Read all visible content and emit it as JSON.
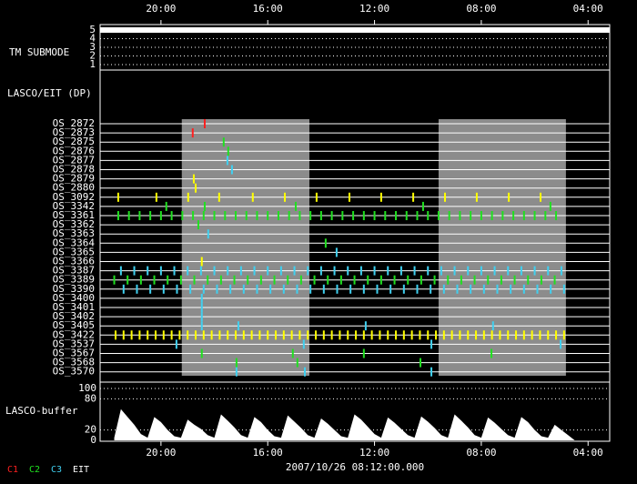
{
  "time_axis": {
    "xlim": [
      22.28,
      3.19
    ],
    "ticks": [
      {
        "value": 20,
        "label": "20:00"
      },
      {
        "value": 16,
        "label": "16:00"
      },
      {
        "value": 12,
        "label": "12:00"
      },
      {
        "value": 8,
        "label": "08:00"
      },
      {
        "value": 4,
        "label": "04:00"
      }
    ]
  },
  "shaded": [
    [
      19.22,
      14.44
    ],
    [
      9.6,
      4.83
    ]
  ],
  "submode": {
    "label": "TM SUBMODE",
    "ylim": [
      1,
      5
    ],
    "yticks": [
      1,
      2,
      3,
      4,
      5
    ],
    "value": 5
  },
  "dp": {
    "label": "LASCO/EIT (DP)",
    "rows": [
      {
        "name": "OS_2872",
        "color": "#ff2020",
        "events": [
          18.36
        ]
      },
      {
        "name": "OS_2873",
        "color": "#ff2020",
        "events": [
          18.81
        ]
      },
      {
        "name": "OS_2875",
        "color": "#20e020",
        "events": [
          17.65
        ]
      },
      {
        "name": "OS_2876",
        "color": "#20e020",
        "events": [
          17.48
        ]
      },
      {
        "name": "OS_2877",
        "color": "#40d0f0",
        "events": [
          17.51
        ]
      },
      {
        "name": "OS_2878",
        "color": "#40d0f0",
        "events": [
          17.34
        ]
      },
      {
        "name": "OS_2879",
        "color": "#ffff00",
        "events": [
          18.77
        ]
      },
      {
        "name": "OS_2880",
        "color": "#ffff00",
        "events": [
          18.7
        ]
      },
      {
        "name": "OS_3092",
        "color": "#ffff00",
        "events": [
          21.6,
          20.17,
          18.98,
          17.82,
          16.56,
          15.36,
          14.17,
          12.94,
          11.75,
          10.55,
          9.36,
          8.17,
          6.97,
          5.78
        ]
      },
      {
        "name": "OS_3342",
        "color": "#20e020",
        "events": [
          19.8,
          18.36,
          14.95,
          10.18,
          5.41
        ]
      },
      {
        "name": "OS_3361",
        "color": "#20e020",
        "events": [
          21.6,
          21.2,
          20.8,
          20.4,
          20.0,
          19.6,
          19.2,
          18.8,
          18.4,
          18.0,
          17.6,
          17.2,
          16.8,
          16.4,
          16.0,
          15.6,
          15.2,
          14.8,
          14.4,
          14.0,
          13.6,
          13.2,
          12.8,
          12.4,
          12.0,
          11.6,
          11.2,
          10.8,
          10.4,
          10.0,
          9.6,
          9.2,
          8.8,
          8.4,
          8.0,
          7.6,
          7.2,
          6.8,
          6.4,
          6.0,
          5.6,
          5.2
        ]
      },
      {
        "name": "OS_3362",
        "color": "#20e020",
        "events": [
          18.6
        ]
      },
      {
        "name": "OS_3363",
        "color": "#40d0f0",
        "events": [
          18.23
        ]
      },
      {
        "name": "OS_3364",
        "color": "#20e020",
        "events": [
          13.83
        ]
      },
      {
        "name": "OS_3365",
        "color": "#40d0f0",
        "events": [
          13.42
        ]
      },
      {
        "name": "OS_3366",
        "color": "#ffff00",
        "events": [
          18.47
        ]
      },
      {
        "name": "OS_3387",
        "color": "#40d0f0",
        "events": [
          21.5,
          21.0,
          20.5,
          20.0,
          19.5,
          19.0,
          18.5,
          18.0,
          17.5,
          17.0,
          16.5,
          16.0,
          15.5,
          15.0,
          14.5,
          14.0,
          13.5,
          13.0,
          12.5,
          12.0,
          11.5,
          11.0,
          10.5,
          10.0,
          9.5,
          9.0,
          8.5,
          8.0,
          7.5,
          7.0,
          6.5,
          6.0,
          5.5,
          5.0
        ]
      },
      {
        "name": "OS_3389",
        "color": "#20e020",
        "events": [
          21.75,
          21.25,
          20.75,
          20.25,
          19.75,
          19.25,
          18.75,
          18.25,
          17.75,
          17.25,
          16.75,
          16.25,
          15.75,
          15.25,
          14.75,
          14.25,
          13.75,
          13.25,
          12.75,
          12.25,
          11.75,
          11.25,
          10.75,
          10.25,
          9.75,
          9.25,
          8.75,
          8.25,
          7.75,
          7.25,
          6.75,
          6.25,
          5.75,
          5.25
        ]
      },
      {
        "name": "OS_3390",
        "color": "#40d0f0",
        "events": [
          21.4,
          20.9,
          20.4,
          19.9,
          19.4,
          18.9,
          18.4,
          17.9,
          17.4,
          16.9,
          16.4,
          15.9,
          15.4,
          14.9,
          14.4,
          13.9,
          13.4,
          12.9,
          12.4,
          11.9,
          11.4,
          10.9,
          10.4,
          9.9,
          9.4,
          8.9,
          8.4,
          7.9,
          7.4,
          6.9,
          6.4,
          5.9,
          5.4,
          4.9
        ]
      },
      {
        "name": "OS_3400",
        "color": "#40d0f0",
        "events": [
          18.47
        ]
      },
      {
        "name": "OS_3401",
        "color": "#40d0f0",
        "events": [
          18.47
        ]
      },
      {
        "name": "OS_3402",
        "color": "#40d0f0",
        "events": [
          18.47
        ]
      },
      {
        "name": "OS_3405",
        "color": "#40d0f0",
        "events": [
          18.47,
          17.1,
          12.33,
          7.56
        ]
      },
      {
        "name": "OS_3422",
        "color": "#ffff00",
        "events": [
          21.7,
          21.4,
          21.1,
          20.8,
          20.5,
          20.2,
          19.9,
          19.6,
          19.3,
          19.0,
          18.7,
          18.4,
          18.1,
          17.8,
          17.5,
          17.2,
          16.9,
          16.6,
          16.3,
          16.0,
          15.7,
          15.4,
          15.1,
          14.8,
          14.5,
          14.2,
          13.9,
          13.6,
          13.3,
          13.0,
          12.7,
          12.4,
          12.1,
          11.8,
          11.5,
          11.2,
          10.9,
          10.6,
          10.3,
          10.0,
          9.7,
          9.4,
          9.1,
          8.8,
          8.5,
          8.2,
          7.9,
          7.6,
          7.3,
          7.0,
          6.7,
          6.4,
          6.1,
          5.8,
          5.5,
          5.2,
          4.9
        ]
      },
      {
        "name": "OS_3537",
        "color": "#40d0f0",
        "events": [
          19.42,
          14.65,
          9.87,
          5.03
        ]
      },
      {
        "name": "OS_3567",
        "color": "#20e020",
        "events": [
          18.47,
          15.06,
          12.4,
          7.62
        ]
      },
      {
        "name": "OS_3568",
        "color": "#20e020",
        "events": [
          17.17,
          14.89,
          10.28
        ]
      },
      {
        "name": "OS_3570",
        "color": "#40d0f0",
        "events": [
          17.17,
          14.61,
          9.87
        ]
      }
    ]
  },
  "buffer": {
    "label": "LASCO-buffer",
    "ylim": [
      0,
      100
    ],
    "yticks": [
      0,
      20,
      80,
      100
    ],
    "x": [
      21.75,
      21.5,
      21.25,
      21.0,
      20.75,
      20.5,
      20.25,
      20.0,
      19.75,
      19.5,
      19.25,
      19.0,
      18.75,
      18.5,
      18.25,
      18.0,
      17.75,
      17.5,
      17.25,
      17.0,
      16.75,
      16.5,
      16.25,
      16.0,
      15.75,
      15.5,
      15.25,
      15.0,
      14.75,
      14.5,
      14.25,
      14.0,
      13.75,
      13.5,
      13.25,
      13.0,
      12.75,
      12.5,
      12.25,
      12.0,
      11.75,
      11.5,
      11.25,
      11.0,
      10.75,
      10.5,
      10.25,
      10.0,
      9.75,
      9.5,
      9.25,
      9.0,
      8.75,
      8.5,
      8.25,
      8.0,
      7.75,
      7.5,
      7.25,
      7.0,
      6.75,
      6.5,
      6.25,
      6.0,
      5.75,
      5.5,
      5.25,
      5.0,
      4.75,
      4.5,
      4.0,
      3.5
    ],
    "values": [
      5,
      60,
      45,
      30,
      12,
      5,
      45,
      35,
      20,
      8,
      5,
      40,
      30,
      22,
      10,
      5,
      50,
      38,
      25,
      10,
      5,
      45,
      35,
      20,
      8,
      5,
      48,
      36,
      24,
      10,
      5,
      42,
      32,
      20,
      8,
      5,
      50,
      40,
      26,
      12,
      5,
      44,
      34,
      22,
      10,
      5,
      46,
      36,
      24,
      10,
      5,
      50,
      38,
      25,
      10,
      5,
      44,
      34,
      22,
      10,
      5,
      45,
      35,
      20,
      8,
      5,
      30,
      20,
      10,
      0,
      0,
      0
    ]
  },
  "legend": [
    {
      "name": "C1",
      "color": "#ff2020"
    },
    {
      "name": "C2",
      "color": "#20e020"
    },
    {
      "name": "C3",
      "color": "#40d0f0"
    },
    {
      "name": "EIT",
      "color": "#ffffff"
    }
  ],
  "date": "2007/10/26 08:12:00.000"
}
